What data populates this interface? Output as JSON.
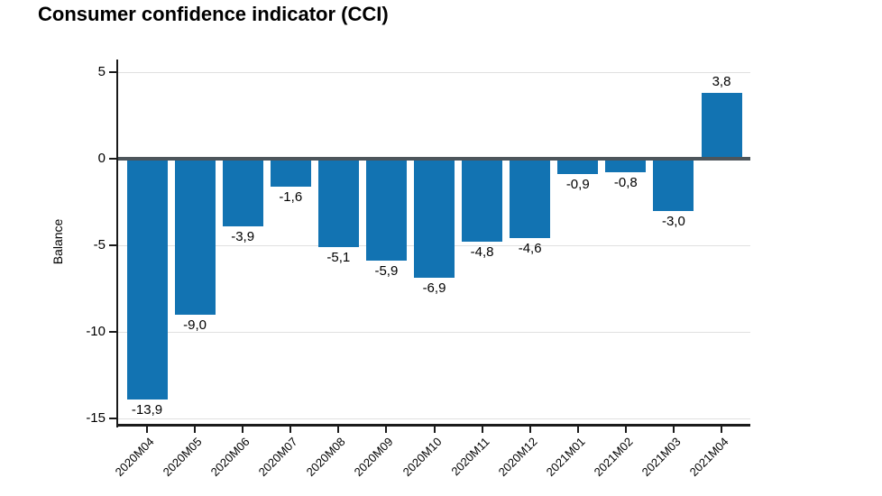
{
  "title": "Consumer confidence indicator (CCI)",
  "chart_data": {
    "type": "bar",
    "title": "Consumer confidence indicator (CCI)",
    "xlabel": "",
    "ylabel": "Balance",
    "categories": [
      "2020M04",
      "2020M05",
      "2020M06",
      "2020M07",
      "2020M08",
      "2020M09",
      "2020M10",
      "2020M11",
      "2020M12",
      "2021M01",
      "2021M02",
      "2021M03",
      "2021M04"
    ],
    "values": [
      -13.9,
      -9.0,
      -3.9,
      -1.6,
      -5.1,
      -5.9,
      -6.9,
      -4.8,
      -4.6,
      -0.9,
      -0.8,
      -3.0,
      3.8
    ],
    "value_labels": [
      "-13,9",
      "-9,0",
      "-3,9",
      "-1,6",
      "-5,1",
      "-5,9",
      "-6,9",
      "-4,8",
      "-4,6",
      "-0,9",
      "-0,8",
      "-3,0",
      "3,8"
    ],
    "y_ticks": [
      5,
      0,
      -5,
      -10,
      -15
    ],
    "y_tick_labels": [
      "5",
      "0",
      "-5",
      "-10",
      "-15"
    ],
    "ylim": [
      -15.5,
      5.8
    ],
    "grid": true,
    "legend_position": "none",
    "decimal_separator": ",",
    "colors": {
      "bar": "#1273b2",
      "zero_line": "#4d555b",
      "gridline": "#e0e0e0",
      "axis": "#1a1a1a",
      "text": "#000000"
    }
  }
}
